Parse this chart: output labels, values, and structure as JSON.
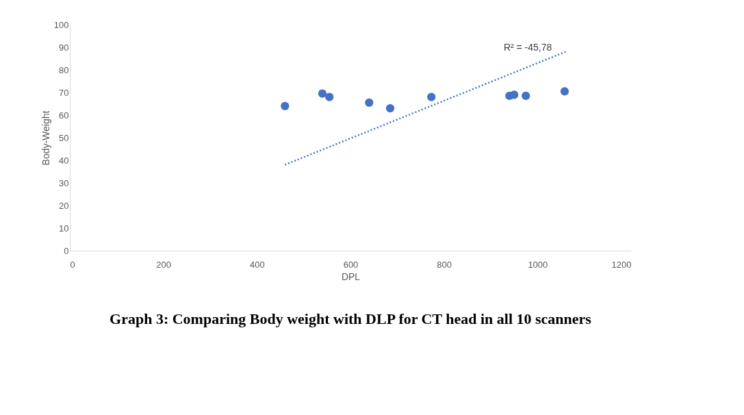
{
  "chart_data": {
    "type": "scatter",
    "title": "Graph 3: Comparing Body weight with DLP for CT head in all 10 scanners",
    "xlabel": "DPL",
    "ylabel": "Body-Weight",
    "x": [
      460,
      540,
      555,
      640,
      685,
      773,
      940,
      950,
      975,
      1058
    ],
    "series": [
      {
        "color": "#4472c4",
        "values": [
          64,
          69.5,
          68,
          65.5,
          63,
          68,
          68.5,
          69,
          68.5,
          70.5
        ]
      },
      {
        "type": "line",
        "color": "#4472c4",
        "line_style": "dotted",
        "marker": "none",
        "x": [
          460,
          1060
        ],
        "values": [
          38,
          88
        ]
      }
    ],
    "annotations": [
      "R² = -45,78"
    ],
    "xlim": [
      0,
      1200
    ],
    "xticks": [
      0,
      200,
      400,
      600,
      800,
      1000,
      1200
    ],
    "ylim": [
      0,
      100
    ],
    "yticks": [
      0,
      10,
      20,
      30,
      40,
      50,
      60,
      70,
      80,
      90,
      100
    ],
    "marker": "circle",
    "grid": false
  }
}
